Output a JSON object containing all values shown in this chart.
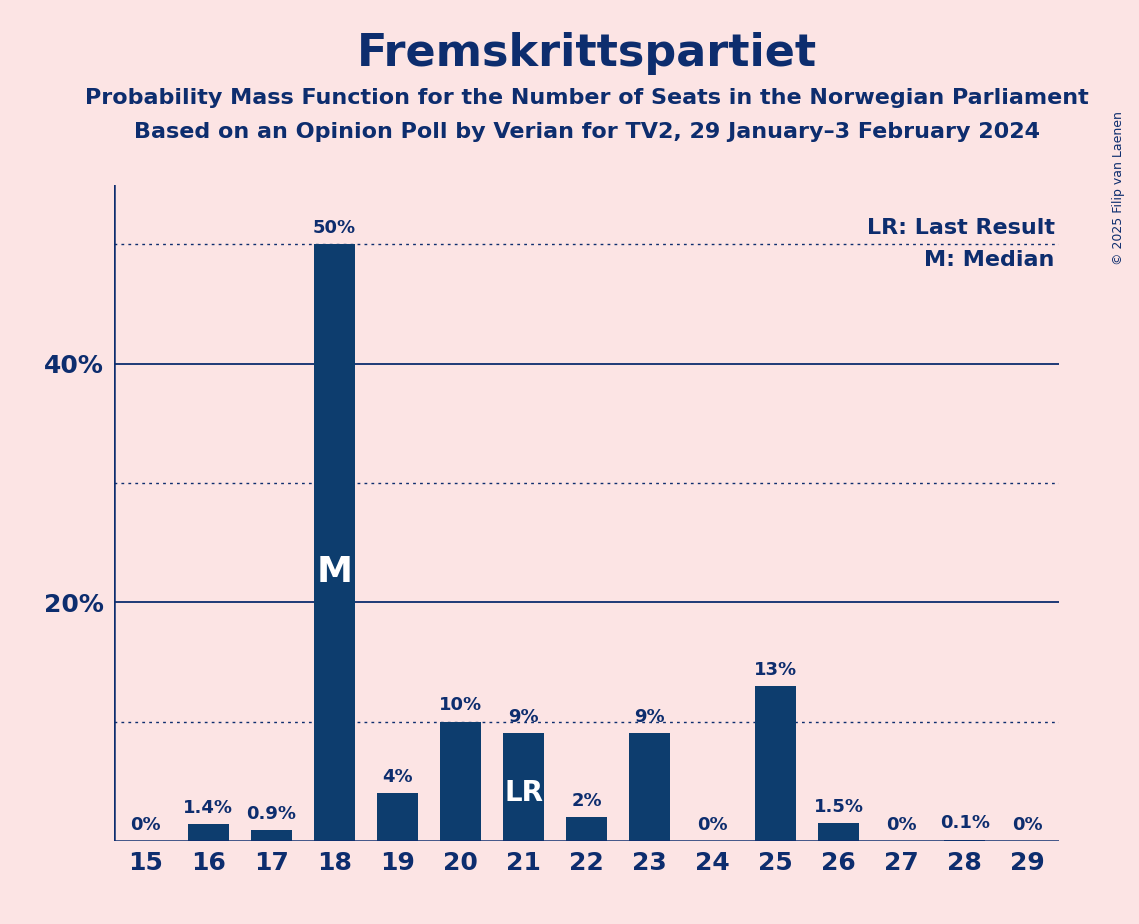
{
  "title": "Fremskrittspartiet",
  "subtitle1": "Probability Mass Function for the Number of Seats in the Norwegian Parliament",
  "subtitle2": "Based on an Opinion Poll by Verian for TV2, 29 January–3 February 2024",
  "copyright": "© 2025 Filip van Laenen",
  "seats": [
    15,
    16,
    17,
    18,
    19,
    20,
    21,
    22,
    23,
    24,
    25,
    26,
    27,
    28,
    29
  ],
  "probabilities": [
    0.0,
    1.4,
    0.9,
    50.0,
    4.0,
    10.0,
    9.0,
    2.0,
    9.0,
    0.0,
    13.0,
    1.5,
    0.0,
    0.1,
    0.0
  ],
  "bar_color": "#0d3d6e",
  "background_color": "#fce4e4",
  "text_color": "#0d2d6e",
  "label_texts": [
    "0%",
    "1.4%",
    "0.9%",
    "50%",
    "4%",
    "10%",
    "9%",
    "2%",
    "9%",
    "0%",
    "13%",
    "1.5%",
    "0%",
    "0.1%",
    "0%"
  ],
  "median_seat": 18,
  "last_result_seat": 21,
  "ylim": [
    0,
    55
  ],
  "dotted_gridlines": [
    10,
    30,
    50
  ],
  "solid_gridlines": [
    20,
    40
  ],
  "legend_lr": "LR: Last Result",
  "legend_m": "M: Median",
  "median_label_fontsize": 26,
  "lr_label_fontsize": 20,
  "bar_label_fontsize": 13,
  "tick_fontsize": 18,
  "title_fontsize": 32,
  "subtitle_fontsize": 16,
  "legend_fontsize": 16
}
